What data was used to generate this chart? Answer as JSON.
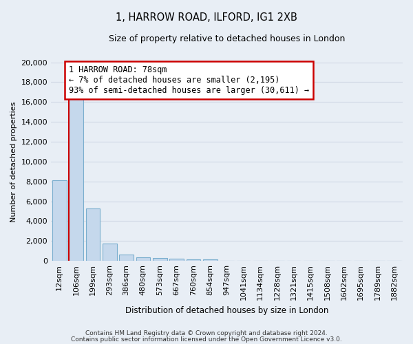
{
  "title1": "1, HARROW ROAD, ILFORD, IG1 2XB",
  "title2": "Size of property relative to detached houses in London",
  "xlabel": "Distribution of detached houses by size in London",
  "ylabel": "Number of detached properties",
  "bar_labels": [
    "12sqm",
    "106sqm",
    "199sqm",
    "293sqm",
    "386sqm",
    "480sqm",
    "573sqm",
    "667sqm",
    "760sqm",
    "854sqm",
    "947sqm",
    "1041sqm",
    "1134sqm",
    "1228sqm",
    "1321sqm",
    "1415sqm",
    "1508sqm",
    "1602sqm",
    "1695sqm",
    "1789sqm",
    "1882sqm"
  ],
  "bar_values": [
    8100,
    16500,
    5300,
    1750,
    650,
    350,
    270,
    200,
    170,
    150,
    0,
    0,
    0,
    0,
    0,
    0,
    0,
    0,
    0,
    0,
    0
  ],
  "bar_color": "#c5d8ec",
  "bar_edge_color": "#7aaece",
  "annotation_text": "1 HARROW ROAD: 78sqm\n← 7% of detached houses are smaller (2,195)\n93% of semi-detached houses are larger (30,611) →",
  "annotation_box_color": "#ffffff",
  "annotation_border_color": "#cc0000",
  "property_line_color": "#cc0000",
  "ylim": [
    0,
    20000
  ],
  "yticks": [
    0,
    2000,
    4000,
    6000,
    8000,
    10000,
    12000,
    14000,
    16000,
    18000,
    20000
  ],
  "footer1": "Contains HM Land Registry data © Crown copyright and database right 2024.",
  "footer2": "Contains public sector information licensed under the Open Government Licence v3.0.",
  "bg_color": "#e8eef5",
  "grid_color": "#d0d8e4"
}
